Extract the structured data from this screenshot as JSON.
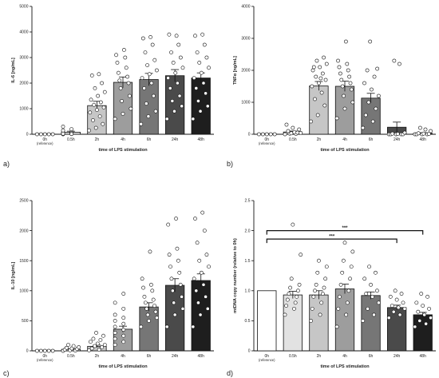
{
  "chart_data": [
    {
      "type": "bar",
      "panel_label": "a)",
      "categories": [
        "0h",
        "0.5h",
        "2h",
        "4h",
        "6h",
        "24h",
        "48h"
      ],
      "category_sublabels": [
        "(reference)",
        "",
        "",
        "",
        "",
        "",
        ""
      ],
      "xlabel": "time of LPS stimulation",
      "ylabel": "IL-6 [ng/mL]",
      "ylim": [
        0,
        5000
      ],
      "yticks": [
        0,
        1000,
        2000,
        3000,
        4000,
        5000
      ],
      "values": [
        10,
        80,
        1120,
        2030,
        2140,
        2290,
        2200
      ],
      "errors": [
        0,
        40,
        170,
        210,
        240,
        240,
        200
      ],
      "bar_colors": [
        "#ffffff",
        "#e2e2e2",
        "#c6c6c6",
        "#9d9d9d",
        "#767676",
        "#4a4a4a",
        "#1e1e1e"
      ],
      "points": [
        [
          0,
          0,
          0,
          0,
          0
        ],
        [
          0,
          10,
          20,
          30,
          40,
          60,
          80,
          100,
          150,
          200,
          300,
          50,
          20,
          10
        ],
        [
          150,
          250,
          400,
          550,
          700,
          850,
          950,
          1050,
          1150,
          1250,
          1350,
          1500,
          1650,
          1800,
          2000,
          2300,
          2350
        ],
        [
          600,
          800,
          1000,
          1300,
          1500,
          1800,
          2000,
          2100,
          2250,
          2400,
          2600,
          2800,
          3000,
          3100,
          3300
        ],
        [
          400,
          700,
          900,
          1200,
          1500,
          1800,
          2000,
          2200,
          2350,
          2500,
          2700,
          2900,
          3200,
          3500,
          3750,
          3800
        ],
        [
          600,
          900,
          1100,
          1300,
          1500,
          1800,
          2000,
          2200,
          2400,
          2600,
          2800,
          3000,
          3200,
          3500,
          3900,
          3850
        ],
        [
          600,
          900,
          1100,
          1300,
          1600,
          1800,
          2000,
          2200,
          2400,
          2600,
          2800,
          3000,
          3200,
          3500,
          3850,
          3900
        ]
      ]
    },
    {
      "type": "bar",
      "panel_label": "b)",
      "categories": [
        "0h",
        "0.5h",
        "2h",
        "4h",
        "6h",
        "24h",
        "48h"
      ],
      "category_sublabels": [
        "(reference)",
        "",
        "",
        "",
        "",
        "",
        ""
      ],
      "xlabel": "time of LPS stimulation",
      "ylabel": "TNFα [ng/mL]",
      "ylim": [
        0,
        4000
      ],
      "yticks": [
        0,
        1000,
        2000,
        3000,
        4000
      ],
      "values": [
        5,
        70,
        1510,
        1500,
        1130,
        220,
        30
      ],
      "errors": [
        0,
        30,
        140,
        160,
        150,
        160,
        20
      ],
      "bar_colors": [
        "#ffffff",
        "#e2e2e2",
        "#c6c6c6",
        "#9d9d9d",
        "#767676",
        "#4a4a4a",
        "#1e1e1e"
      ],
      "points": [
        [
          0,
          0,
          0,
          0,
          0
        ],
        [
          0,
          10,
          20,
          40,
          60,
          100,
          150,
          200,
          300,
          50,
          30
        ],
        [
          400,
          600,
          900,
          1100,
          1300,
          1500,
          1600,
          1700,
          1800,
          1900,
          2000,
          2100,
          2200,
          2300,
          2400,
          2100,
          1750
        ],
        [
          500,
          800,
          1000,
          1200,
          1400,
          1500,
          1600,
          1700,
          1800,
          1900,
          2000,
          2100,
          2200,
          2300,
          2900
        ],
        [
          200,
          400,
          600,
          800,
          1000,
          1200,
          1400,
          1600,
          1800,
          2000,
          2050,
          2900
        ],
        [
          0,
          0,
          0,
          0,
          0,
          10,
          20,
          50,
          2200,
          2300
        ],
        [
          0,
          0,
          0,
          0,
          10,
          20,
          30,
          100,
          150,
          200
        ]
      ]
    },
    {
      "type": "bar",
      "panel_label": "c)",
      "categories": [
        "0h",
        "0.5h",
        "2h",
        "4h",
        "6h",
        "24h",
        "48h"
      ],
      "category_sublabels": [
        "(reference)",
        "",
        "",
        "",
        "",
        "",
        ""
      ],
      "xlabel": "time of LPS stimulation",
      "ylabel": "IL-10 [ng/mL]",
      "ylim": [
        0,
        2500
      ],
      "yticks": [
        0,
        500,
        1000,
        1500,
        2000,
        2500
      ],
      "values": [
        0,
        25,
        75,
        360,
        730,
        1090,
        1170
      ],
      "errors": [
        0,
        10,
        20,
        50,
        70,
        110,
        110
      ],
      "bar_colors": [
        "#ffffff",
        "#e2e2e2",
        "#c6c6c6",
        "#9d9d9d",
        "#767676",
        "#4a4a4a",
        "#1e1e1e"
      ],
      "points": [
        [
          0,
          0,
          0,
          0,
          0
        ],
        [
          0,
          5,
          10,
          20,
          30,
          40,
          50,
          60,
          80,
          100
        ],
        [
          10,
          20,
          40,
          60,
          80,
          100,
          120,
          150,
          180,
          200,
          250,
          300
        ],
        [
          100,
          150,
          200,
          250,
          300,
          350,
          400,
          450,
          500,
          550,
          600,
          700,
          800,
          950
        ],
        [
          400,
          500,
          550,
          600,
          650,
          700,
          750,
          800,
          850,
          900,
          1000,
          1050,
          1100,
          1200,
          1650
        ],
        [
          400,
          600,
          700,
          800,
          900,
          1000,
          1100,
          1200,
          1300,
          1400,
          1500,
          1600,
          1700,
          2100,
          2200
        ],
        [
          400,
          600,
          700,
          800,
          900,
          1000,
          1100,
          1200,
          1300,
          1400,
          1500,
          1600,
          1800,
          2000,
          2200,
          2300
        ]
      ]
    },
    {
      "type": "bar",
      "panel_label": "d)",
      "categories": [
        "0h",
        "0.5h",
        "2h",
        "4h",
        "6h",
        "24h",
        "48h"
      ],
      "category_sublabels": [
        "(reference)",
        "",
        "",
        "",
        "",
        "",
        ""
      ],
      "xlabel": "time of LPS stimulation",
      "ylabel": "mtDNA copy number (relative to 0h)",
      "ylim": [
        0,
        2.5
      ],
      "yticks": [
        0,
        0.5,
        1.0,
        1.5,
        2.0,
        2.5
      ],
      "values": [
        1.0,
        0.93,
        0.93,
        1.03,
        0.92,
        0.72,
        0.6
      ],
      "errors": [
        0,
        0.06,
        0.07,
        0.08,
        0.06,
        0.04,
        0.04
      ],
      "bar_colors": [
        "#ffffff",
        "#e2e2e2",
        "#c6c6c6",
        "#9d9d9d",
        "#767676",
        "#4a4a4a",
        "#1e1e1e"
      ],
      "points": [
        [],
        [
          0.6,
          0.7,
          0.75,
          0.8,
          0.85,
          0.9,
          0.95,
          1.0,
          1.05,
          1.1,
          1.2,
          1.6,
          2.1
        ],
        [
          0.5,
          0.6,
          0.7,
          0.8,
          0.9,
          0.95,
          1.0,
          1.05,
          1.1,
          1.2,
          1.3,
          1.4,
          1.5
        ],
        [
          0.4,
          0.6,
          0.7,
          0.8,
          0.9,
          1.0,
          1.1,
          1.2,
          1.3,
          1.4,
          1.5,
          1.65,
          1.8
        ],
        [
          0.5,
          0.6,
          0.7,
          0.8,
          0.9,
          0.95,
          1.0,
          1.1,
          1.2,
          1.3,
          1.4
        ],
        [
          0.55,
          0.6,
          0.65,
          0.7,
          0.72,
          0.75,
          0.8,
          0.85,
          0.9,
          0.95,
          1.0
        ],
        [
          0.4,
          0.45,
          0.5,
          0.55,
          0.6,
          0.65,
          0.7,
          0.75,
          0.8,
          0.9,
          0.95
        ]
      ],
      "annotations": [
        {
          "from": "0h",
          "to": "48h",
          "text": "***",
          "y": 2.0
        },
        {
          "from": "0h",
          "to": "24h",
          "text": "***",
          "y": 1.86
        }
      ]
    }
  ]
}
